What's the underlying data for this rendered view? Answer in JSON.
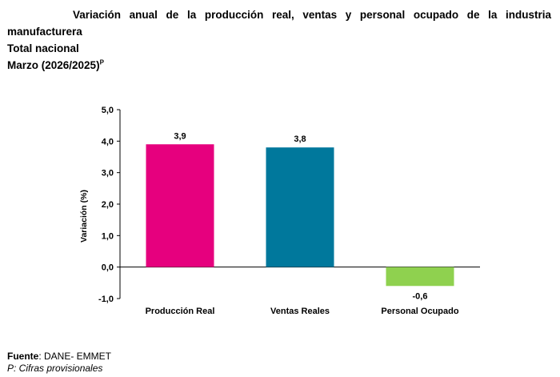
{
  "header": {
    "title_line1": "Variación anual de la producción real, ventas y personal ocupado de la industria",
    "title_line2": "manufacturera",
    "subtitle": "Total nacional",
    "period": "Marzo (2026/2025)",
    "period_sup": "P"
  },
  "chart_data": {
    "type": "bar",
    "categories": [
      "Producción Real",
      "Ventas Reales",
      "Personal Ocupado"
    ],
    "values": [
      3.9,
      3.8,
      -0.6
    ],
    "value_labels": [
      "3,9",
      "3,8",
      "-0,6"
    ],
    "colors": [
      "#e6007e",
      "#00789c",
      "#8fd14f"
    ],
    "ylabel": "Variación (%)",
    "ylim": [
      -1.0,
      5.0
    ],
    "yticks": [
      5.0,
      4.0,
      3.0,
      2.0,
      1.0,
      0.0,
      -1.0
    ],
    "ytick_labels": [
      "5,0",
      "4,0",
      "3,0",
      "2,0",
      "1,0",
      "0,0",
      "-1,0"
    ],
    "grid": false,
    "legend": "none"
  },
  "footer": {
    "source_label": "Fuente",
    "source_value": ": DANE- EMMET",
    "note": "P: Cifras provisionales"
  }
}
